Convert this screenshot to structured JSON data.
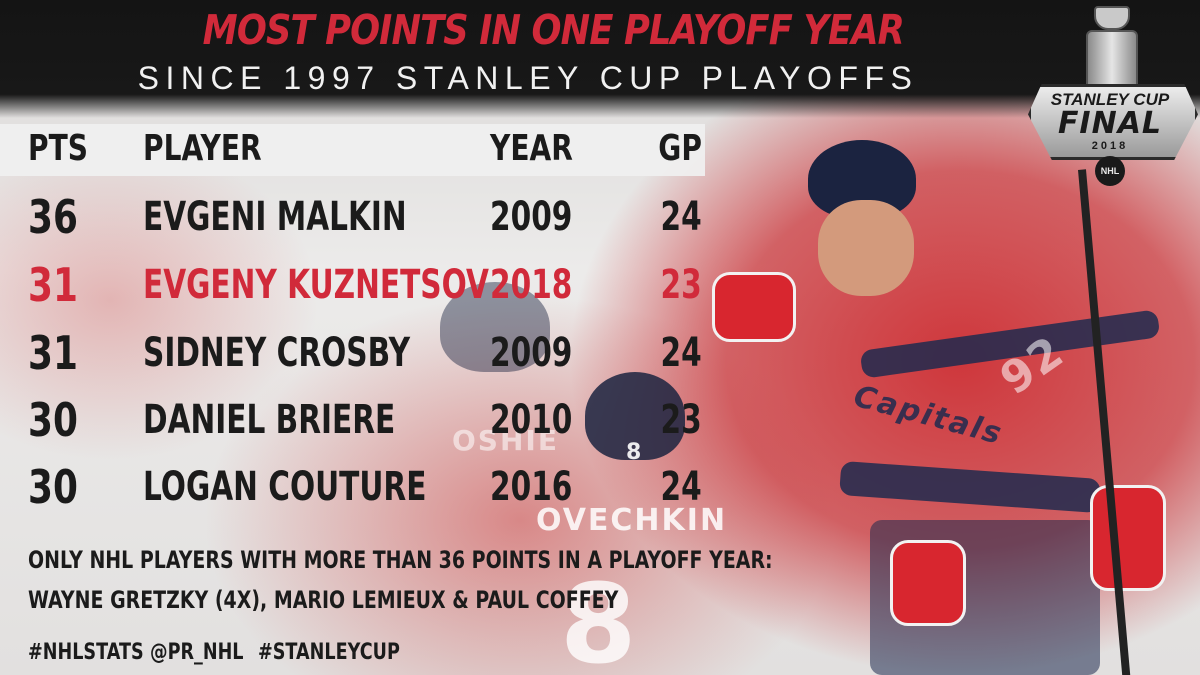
{
  "header": {
    "title": "MOST POINTS IN ONE PLAYOFF YEAR",
    "subtitle": "SINCE 1997 STANLEY CUP PLAYOFFS"
  },
  "logo": {
    "line1": "STANLEY CUP",
    "line2": "FINAL",
    "year": "2018",
    "badge": "NHL"
  },
  "table": {
    "headers": {
      "pts": "PTS",
      "player": "PLAYER",
      "year": "YEAR",
      "gp": "GP"
    },
    "rows": [
      {
        "pts": "36",
        "player": "EVGENI MALKIN",
        "year": "2009",
        "gp": "24",
        "highlight": false
      },
      {
        "pts": "31",
        "player": "EVGENY KUZNETSOV",
        "year": "2018",
        "gp": "23",
        "highlight": true
      },
      {
        "pts": "31",
        "player": "SIDNEY CROSBY",
        "year": "2009",
        "gp": "24",
        "highlight": false
      },
      {
        "pts": "30",
        "player": "DANIEL BRIERE",
        "year": "2010",
        "gp": "23",
        "highlight": false
      },
      {
        "pts": "30",
        "player": "LOGAN COUTURE",
        "year": "2016",
        "gp": "24",
        "highlight": false
      }
    ]
  },
  "footnote": {
    "line1": "ONLY NHL PLAYERS WITH MORE THAN 36 POINTS IN A PLAYOFF YEAR:",
    "line2": "WAYNE GRETZKY (4X), MARIO LEMIEUX & PAUL COFFEY"
  },
  "hashtags": [
    "#NHLSTATS",
    "@PR_NHL",
    "#STANLEYCUP"
  ],
  "photo_text": {
    "jersey_number": "92",
    "oshie": "OSHIE",
    "ovechkin": "OVECHKIN",
    "ovechkin_number": "8",
    "helmet_number": "8",
    "team": "Capitals"
  },
  "colors": {
    "accent": "#d12a3a",
    "header_bg": "#161616",
    "text": "#1b1b1b"
  }
}
